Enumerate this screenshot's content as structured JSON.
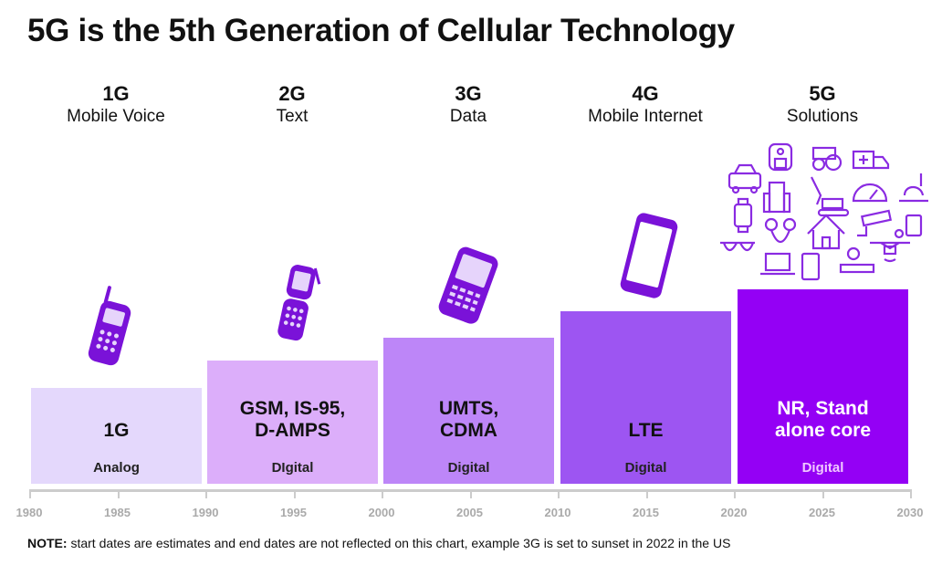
{
  "title": "5G is the 5th Generation of Cellular Technology",
  "generations": [
    {
      "gen": "1G",
      "use": "Mobile Voice",
      "tech": "1G",
      "signal": "Analog",
      "color": "#e4d8fc",
      "text_color": "#111111",
      "icon": "brick-phone-icon"
    },
    {
      "gen": "2G",
      "use": "Text",
      "tech": "GSM, IS-95,\nD-AMPS",
      "signal": "DIgital",
      "color": "#dcaefa",
      "text_color": "#111111",
      "icon": "flip-phone-icon"
    },
    {
      "gen": "3G",
      "use": "Data",
      "tech": "UMTS,\nCDMA",
      "signal": "Digital",
      "color": "#bd86f8",
      "text_color": "#111111",
      "icon": "blackberry-phone-icon"
    },
    {
      "gen": "4G",
      "use": "Mobile Internet",
      "tech": "LTE",
      "signal": "Digital",
      "color": "#9d55f2",
      "text_color": "#111111",
      "icon": "smartphone-icon"
    },
    {
      "gen": "5G",
      "use": "Solutions",
      "tech": "NR, Stand\nalone core",
      "signal": "Digital",
      "color": "#9400f5",
      "text_color": "#ffffff",
      "icon": "iot-icons-cluster"
    }
  ],
  "axis_ticks": [
    "1980",
    "1985",
    "1990",
    "1995",
    "2000",
    "2005",
    "2010",
    "2015",
    "2020",
    "2025",
    "2030"
  ],
  "note": {
    "bold": "NOTE:",
    "text": " start dates are estimates and end dates are not reflected on this chart, example 3G is set to sunset in 2022 in the US"
  },
  "icon_color": "#7a12d8"
}
